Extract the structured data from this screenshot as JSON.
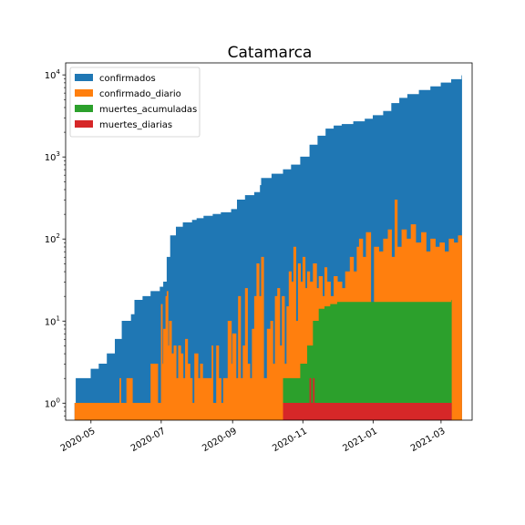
{
  "chart_data": {
    "type": "area",
    "title": "Catamarca",
    "xlabel": "",
    "ylabel": "",
    "yscale": "log",
    "ylim": [
      0.62,
      14000
    ],
    "xlim": [
      "2020-04-09",
      "2021-03-28"
    ],
    "grid": false,
    "legend_position": "top-left",
    "x_ticks": [
      {
        "date": "2020-05-01",
        "label": "2020-05"
      },
      {
        "date": "2020-07-01",
        "label": "2020-07"
      },
      {
        "date": "2020-09-01",
        "label": "2020-09"
      },
      {
        "date": "2020-11-01",
        "label": "2020-11"
      },
      {
        "date": "2021-01-01",
        "label": "2021-01"
      },
      {
        "date": "2021-03-01",
        "label": "2021-03"
      }
    ],
    "y_ticks": [
      {
        "value": 1,
        "base": "10",
        "exp": "0"
      },
      {
        "value": 10,
        "base": "10",
        "exp": "1"
      },
      {
        "value": 100,
        "base": "10",
        "exp": "2"
      },
      {
        "value": 1000,
        "base": "10",
        "exp": "3"
      },
      {
        "value": 10000,
        "base": "10",
        "exp": "4"
      }
    ],
    "series": [
      {
        "name": "confirmados",
        "color": "#1f77b4",
        "points": [
          [
            "2020-04-17",
            1
          ],
          [
            "2020-04-18",
            2
          ],
          [
            "2020-05-01",
            2.6
          ],
          [
            "2020-05-08",
            3
          ],
          [
            "2020-05-15",
            4
          ],
          [
            "2020-05-22",
            6
          ],
          [
            "2020-05-28",
            10
          ],
          [
            "2020-06-05",
            12
          ],
          [
            "2020-06-08",
            18
          ],
          [
            "2020-06-15",
            20
          ],
          [
            "2020-06-22",
            23
          ],
          [
            "2020-06-30",
            26
          ],
          [
            "2020-07-03",
            30
          ],
          [
            "2020-07-06",
            60
          ],
          [
            "2020-07-09",
            110
          ],
          [
            "2020-07-14",
            140
          ],
          [
            "2020-07-20",
            158
          ],
          [
            "2020-07-28",
            170
          ],
          [
            "2020-08-01",
            178
          ],
          [
            "2020-08-07",
            190
          ],
          [
            "2020-08-15",
            200
          ],
          [
            "2020-08-22",
            210
          ],
          [
            "2020-08-31",
            230
          ],
          [
            "2020-09-05",
            300
          ],
          [
            "2020-09-12",
            340
          ],
          [
            "2020-09-20",
            370
          ],
          [
            "2020-09-25",
            450
          ],
          [
            "2020-09-26",
            550
          ],
          [
            "2020-10-05",
            620
          ],
          [
            "2020-10-15",
            700
          ],
          [
            "2020-10-22",
            800
          ],
          [
            "2020-10-30",
            1000
          ],
          [
            "2020-11-07",
            1400
          ],
          [
            "2020-11-14",
            1800
          ],
          [
            "2020-11-21",
            2200
          ],
          [
            "2020-11-28",
            2400
          ],
          [
            "2020-12-05",
            2500
          ],
          [
            "2020-12-15",
            2700
          ],
          [
            "2020-12-25",
            2900
          ],
          [
            "2021-01-01",
            3200
          ],
          [
            "2021-01-10",
            3600
          ],
          [
            "2021-01-17",
            4500
          ],
          [
            "2021-01-24",
            5200
          ],
          [
            "2021-01-31",
            5800
          ],
          [
            "2021-02-10",
            6500
          ],
          [
            "2021-02-20",
            7200
          ],
          [
            "2021-03-01",
            8000
          ],
          [
            "2021-03-10",
            8800
          ],
          [
            "2021-03-19",
            9900
          ]
        ]
      },
      {
        "name": "confirmado_diario",
        "color": "#ff7f0e",
        "points": [
          [
            "2020-04-17",
            1
          ],
          [
            "2020-05-25",
            1
          ],
          [
            "2020-05-26",
            2
          ],
          [
            "2020-05-27",
            1
          ],
          [
            "2020-06-01",
            2
          ],
          [
            "2020-06-05",
            2
          ],
          [
            "2020-06-06",
            1
          ],
          [
            "2020-06-15",
            1
          ],
          [
            "2020-06-22",
            3
          ],
          [
            "2020-06-28",
            1
          ],
          [
            "2020-06-30",
            1
          ],
          [
            "2020-07-01",
            16
          ],
          [
            "2020-07-02",
            3
          ],
          [
            "2020-07-03",
            8
          ],
          [
            "2020-07-05",
            20
          ],
          [
            "2020-07-06",
            23
          ],
          [
            "2020-07-07",
            5
          ],
          [
            "2020-07-08",
            10
          ],
          [
            "2020-07-10",
            4
          ],
          [
            "2020-07-12",
            5
          ],
          [
            "2020-07-14",
            2
          ],
          [
            "2020-07-16",
            5
          ],
          [
            "2020-07-18",
            4
          ],
          [
            "2020-07-20",
            2
          ],
          [
            "2020-07-22",
            6
          ],
          [
            "2020-07-24",
            3
          ],
          [
            "2020-07-26",
            2
          ],
          [
            "2020-07-28",
            1
          ],
          [
            "2020-07-30",
            4
          ],
          [
            "2020-08-02",
            2
          ],
          [
            "2020-08-04",
            3
          ],
          [
            "2020-08-06",
            2
          ],
          [
            "2020-08-08",
            2
          ],
          [
            "2020-08-12",
            2
          ],
          [
            "2020-08-14",
            5
          ],
          [
            "2020-08-15",
            1
          ],
          [
            "2020-08-18",
            5
          ],
          [
            "2020-08-20",
            2
          ],
          [
            "2020-08-22",
            1
          ],
          [
            "2020-08-24",
            2
          ],
          [
            "2020-08-28",
            10
          ],
          [
            "2020-08-31",
            3
          ],
          [
            "2020-09-01",
            7
          ],
          [
            "2020-09-04",
            2
          ],
          [
            "2020-09-06",
            20
          ],
          [
            "2020-09-08",
            2
          ],
          [
            "2020-09-10",
            5
          ],
          [
            "2020-09-12",
            25
          ],
          [
            "2020-09-14",
            3
          ],
          [
            "2020-09-16",
            2
          ],
          [
            "2020-09-18",
            8
          ],
          [
            "2020-09-20",
            20
          ],
          [
            "2020-09-22",
            50
          ],
          [
            "2020-09-24",
            20
          ],
          [
            "2020-09-26",
            60
          ],
          [
            "2020-09-28",
            2
          ],
          [
            "2020-10-01",
            8
          ],
          [
            "2020-10-04",
            10
          ],
          [
            "2020-10-06",
            3
          ],
          [
            "2020-10-08",
            20
          ],
          [
            "2020-10-10",
            25
          ],
          [
            "2020-10-12",
            5
          ],
          [
            "2020-10-14",
            20
          ],
          [
            "2020-10-16",
            3
          ],
          [
            "2020-10-18",
            15
          ],
          [
            "2020-10-20",
            40
          ],
          [
            "2020-10-22",
            30
          ],
          [
            "2020-10-24",
            80
          ],
          [
            "2020-10-26",
            10
          ],
          [
            "2020-10-28",
            50
          ],
          [
            "2020-10-30",
            30
          ],
          [
            "2020-11-01",
            60
          ],
          [
            "2020-11-03",
            25
          ],
          [
            "2020-11-05",
            40
          ],
          [
            "2020-11-07",
            30
          ],
          [
            "2020-11-10",
            50
          ],
          [
            "2020-11-13",
            25
          ],
          [
            "2020-11-15",
            35
          ],
          [
            "2020-11-18",
            20
          ],
          [
            "2020-11-20",
            45
          ],
          [
            "2020-11-22",
            30
          ],
          [
            "2020-11-25",
            20
          ],
          [
            "2020-11-28",
            35
          ],
          [
            "2020-12-01",
            30
          ],
          [
            "2020-12-05",
            25
          ],
          [
            "2020-12-08",
            40
          ],
          [
            "2020-12-12",
            60
          ],
          [
            "2020-12-15",
            40
          ],
          [
            "2020-12-18",
            80
          ],
          [
            "2020-12-20",
            100
          ],
          [
            "2020-12-23",
            60
          ],
          [
            "2020-12-26",
            120
          ],
          [
            "2020-12-30",
            4
          ],
          [
            "2021-01-02",
            80
          ],
          [
            "2021-01-06",
            70
          ],
          [
            "2021-01-10",
            100
          ],
          [
            "2021-01-14",
            130
          ],
          [
            "2021-01-17",
            60
          ],
          [
            "2021-01-20",
            300
          ],
          [
            "2021-01-22",
            80
          ],
          [
            "2021-01-26",
            130
          ],
          [
            "2021-01-30",
            100
          ],
          [
            "2021-02-03",
            150
          ],
          [
            "2021-02-07",
            90
          ],
          [
            "2021-02-12",
            120
          ],
          [
            "2021-02-16",
            70
          ],
          [
            "2021-02-20",
            100
          ],
          [
            "2021-02-24",
            80
          ],
          [
            "2021-02-28",
            90
          ],
          [
            "2021-03-04",
            70
          ],
          [
            "2021-03-08",
            100
          ],
          [
            "2021-03-12",
            90
          ],
          [
            "2021-03-16",
            110
          ],
          [
            "2021-03-19",
            100
          ]
        ]
      },
      {
        "name": "muertes_acumuladas",
        "color": "#2ca02c",
        "points": [
          [
            "2020-10-15",
            2
          ],
          [
            "2020-10-30",
            3
          ],
          [
            "2020-11-05",
            5
          ],
          [
            "2020-11-10",
            10
          ],
          [
            "2020-11-15",
            14
          ],
          [
            "2020-11-20",
            15
          ],
          [
            "2020-11-25",
            16
          ],
          [
            "2020-12-01",
            17
          ],
          [
            "2021-03-10",
            18
          ]
        ]
      },
      {
        "name": "muertes_diarias",
        "color": "#d62728",
        "points": [
          [
            "2020-10-15",
            1
          ],
          [
            "2020-11-05",
            1
          ],
          [
            "2020-11-07",
            2
          ],
          [
            "2020-11-08",
            1
          ],
          [
            "2020-11-10",
            2
          ],
          [
            "2020-11-11",
            1
          ],
          [
            "2021-03-10",
            1
          ]
        ]
      }
    ]
  }
}
